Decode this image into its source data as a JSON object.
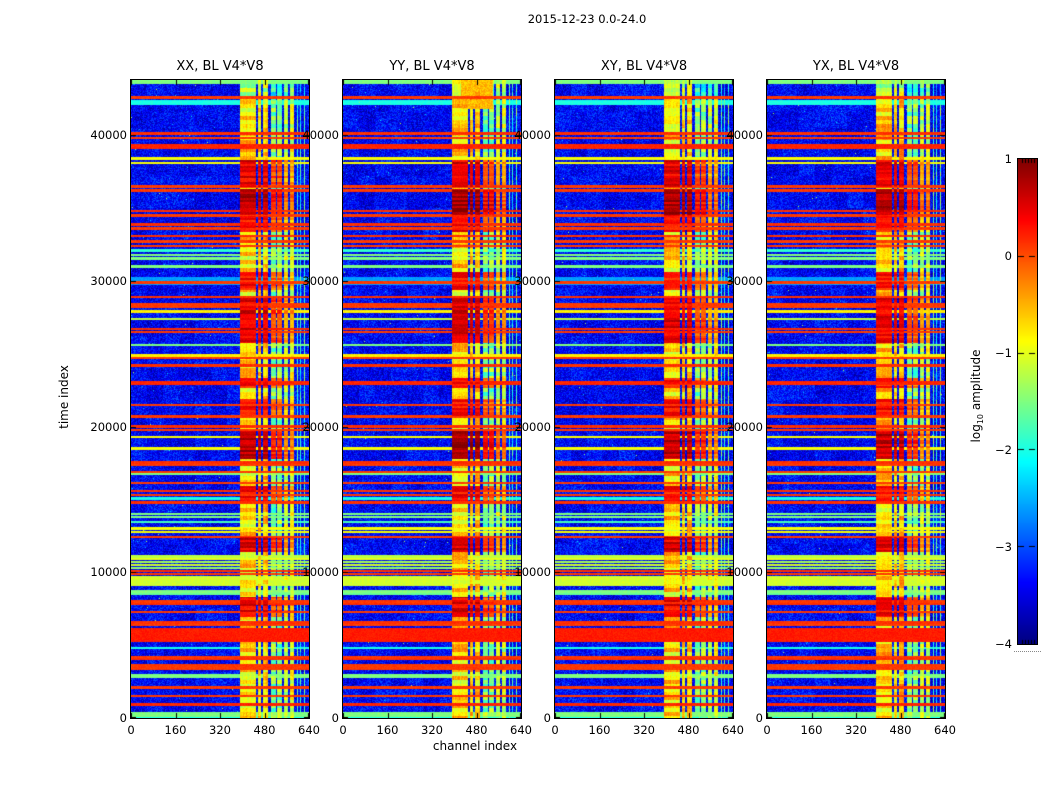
{
  "chart_data": {
    "type": "heatmap",
    "title": "2015-12-23 0.0-24.0",
    "xlabel": "channel index",
    "ylabel": "time index",
    "xlim": [
      0,
      640
    ],
    "ylim": [
      0,
      43800
    ],
    "x_ticks": [
      0,
      160,
      320,
      480,
      640
    ],
    "x_tick_labels": [
      "0",
      "160",
      "320",
      "480",
      "640"
    ],
    "y_ticks": [
      0,
      10000,
      20000,
      30000,
      40000
    ],
    "y_tick_labels": [
      "0",
      "10000",
      "20000",
      "30000",
      "40000"
    ],
    "grid": false,
    "panels": [
      {
        "title": "XX, BL V4*V8",
        "seed": 11,
        "blob_gain": 1.0,
        "top_patch": false
      },
      {
        "title": "YY, BL V4*V8",
        "seed": 23,
        "blob_gain": 1.1,
        "top_patch": true
      },
      {
        "title": "XY, BL V4*V8",
        "seed": 37,
        "blob_gain": 0.95,
        "top_patch": false
      },
      {
        "title": "YX, BL V4*V8",
        "seed": 51,
        "blob_gain": 0.88,
        "top_patch": false
      }
    ],
    "colorbar": {
      "label": "log10 amplitude",
      "label_pre": "log",
      "label_sub": "10",
      "label_post": " amplitude",
      "ticks": [
        "1",
        "0",
        "−1",
        "−2",
        "−3",
        "−4"
      ],
      "tick_values": [
        1,
        0,
        -1,
        -2,
        -3,
        -4
      ],
      "vmin": -4,
      "vmax": 1,
      "colormap": "jet"
    },
    "features": {
      "background_level": -3.5,
      "vertical_bands": [
        [
          393,
          448,
          -0.72
        ],
        [
          455,
          468,
          -0.7
        ],
        [
          474,
          492,
          -0.7
        ],
        [
          505,
          520,
          -1.5
        ],
        [
          524,
          543,
          -1.45
        ],
        [
          550,
          566,
          -1.2
        ],
        [
          570,
          585,
          -1.1
        ],
        [
          596,
          602,
          -1.75
        ],
        [
          609,
          613,
          -1.95
        ],
        [
          621,
          627,
          -1.65
        ]
      ],
      "rfi_blobs": [
        [
          36500,
          38300,
          0.45
        ],
        [
          34600,
          36300,
          0.78
        ],
        [
          33400,
          34600,
          0.35
        ],
        [
          29400,
          30600,
          0.32
        ],
        [
          25800,
          28800,
          0.5
        ],
        [
          22700,
          23300,
          0.3
        ],
        [
          20800,
          21900,
          0.35
        ],
        [
          17800,
          19700,
          0.72
        ],
        [
          14900,
          15900,
          0.3
        ],
        [
          11400,
          12400,
          0.55
        ],
        [
          7000,
          8300,
          0.42
        ]
      ],
      "horizontal_stripes": [
        [
          43650,
          120,
          -1.5
        ],
        [
          42600,
          60,
          0.1
        ],
        [
          42250,
          140,
          -2.0
        ],
        [
          40100,
          70,
          0.15
        ],
        [
          39800,
          50,
          0.1
        ],
        [
          39250,
          150,
          0.2
        ],
        [
          38400,
          50,
          -0.9
        ],
        [
          38100,
          40,
          -0.9
        ],
        [
          36500,
          60,
          0.1
        ],
        [
          36200,
          50,
          0.1
        ],
        [
          34800,
          50,
          0.15
        ],
        [
          34500,
          40,
          0.1
        ],
        [
          33900,
          60,
          0.15
        ],
        [
          33600,
          40,
          0.1
        ],
        [
          33100,
          50,
          0.15
        ],
        [
          32700,
          50,
          0.1
        ],
        [
          32400,
          40,
          0.1
        ],
        [
          32100,
          50,
          -1.9
        ],
        [
          31800,
          40,
          -1.5
        ],
        [
          31550,
          40,
          -1.5
        ],
        [
          31000,
          50,
          -1.5
        ],
        [
          30000,
          220,
          -2.6
        ],
        [
          29900,
          50,
          0.1
        ],
        [
          28900,
          60,
          0.15
        ],
        [
          28400,
          50,
          0.1
        ],
        [
          28200,
          40,
          0.1
        ],
        [
          27900,
          50,
          -0.8
        ],
        [
          27400,
          60,
          -1.2
        ],
        [
          26700,
          60,
          0.15
        ],
        [
          26500,
          40,
          0.1
        ],
        [
          25600,
          50,
          -1.5
        ],
        [
          24900,
          60,
          -0.8
        ],
        [
          24700,
          40,
          0.1
        ],
        [
          24200,
          50,
          0.15
        ],
        [
          23000,
          90,
          0.2
        ],
        [
          21500,
          50,
          0.1
        ],
        [
          20700,
          50,
          0.1
        ],
        [
          20000,
          60,
          0.15
        ],
        [
          19800,
          40,
          0.1
        ],
        [
          19300,
          40,
          -0.9
        ],
        [
          18500,
          40,
          -0.9
        ],
        [
          17550,
          50,
          0.15
        ],
        [
          17350,
          40,
          0.1
        ],
        [
          16900,
          50,
          0.1
        ],
        [
          16750,
          40,
          -1.5
        ],
        [
          16150,
          40,
          0.1
        ],
        [
          15600,
          50,
          0.15
        ],
        [
          15300,
          40,
          0.1
        ],
        [
          15050,
          60,
          -2.0
        ],
        [
          14800,
          50,
          0.15
        ],
        [
          14000,
          40,
          -1.5
        ],
        [
          13800,
          40,
          -1.5
        ],
        [
          13450,
          40,
          -1.8
        ],
        [
          13000,
          50,
          -0.9
        ],
        [
          12750,
          40,
          -0.9
        ],
        [
          12400,
          40,
          0.1
        ],
        [
          11100,
          60,
          -1.2
        ],
        [
          10900,
          50,
          -1.0
        ],
        [
          10700,
          50,
          -1.3
        ],
        [
          10500,
          50,
          -1.1
        ],
        [
          10300,
          40,
          -1.4
        ],
        [
          10100,
          50,
          0.15
        ],
        [
          9900,
          40,
          0.1
        ],
        [
          9400,
          300,
          -1.1
        ],
        [
          8700,
          50,
          -1.5
        ],
        [
          8550,
          40,
          -1.6
        ],
        [
          8000,
          50,
          0.1
        ],
        [
          7800,
          40,
          0.15
        ],
        [
          7300,
          40,
          0.1
        ],
        [
          6550,
          50,
          0.15
        ],
        [
          6400,
          40,
          0.1
        ],
        [
          5700,
          450,
          0.25
        ],
        [
          4800,
          60,
          -2.0
        ],
        [
          4200,
          50,
          0.1
        ],
        [
          4050,
          40,
          0.15
        ],
        [
          3600,
          50,
          0.1
        ],
        [
          3400,
          40,
          0.1
        ],
        [
          2950,
          50,
          -1.5
        ],
        [
          2800,
          40,
          -1.5
        ],
        [
          2100,
          50,
          0.1
        ],
        [
          1500,
          40,
          0.1
        ],
        [
          900,
          70,
          0.2
        ],
        [
          250,
          120,
          -1.5
        ],
        [
          80,
          80,
          -2.0
        ]
      ]
    }
  }
}
